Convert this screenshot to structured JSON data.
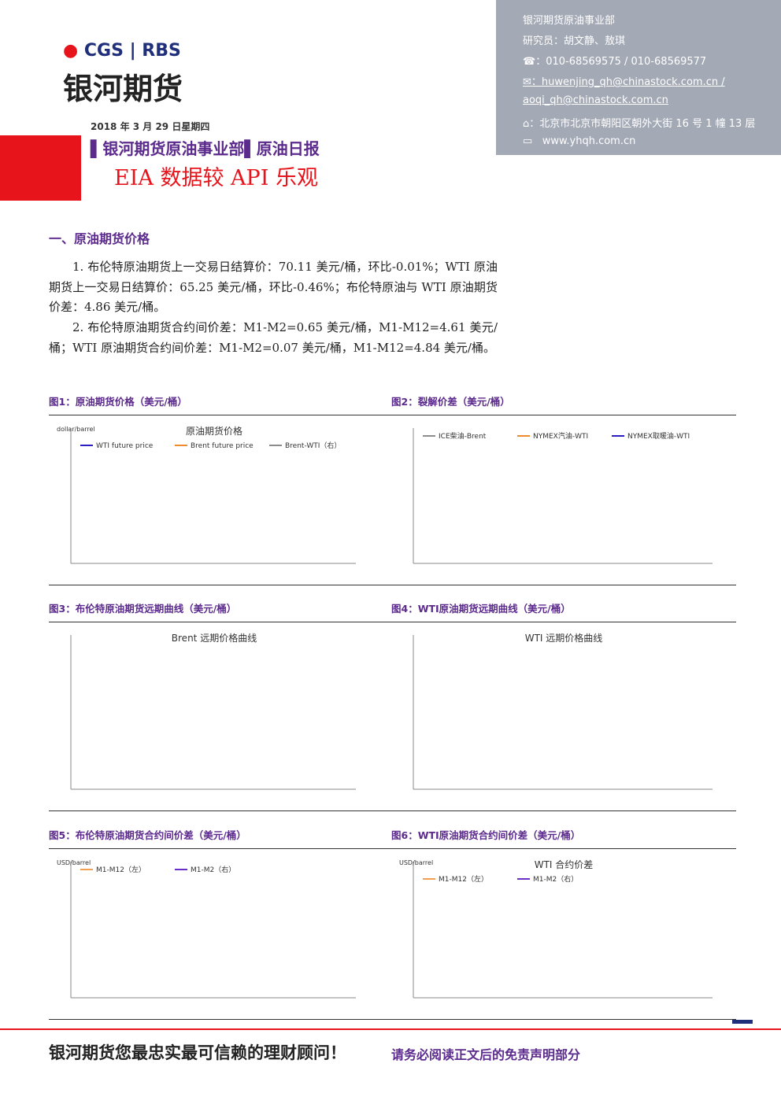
{
  "header": {
    "logo_brand": "CGS",
    "logo_partner": "RBS",
    "company": "银河期货",
    "contact": [
      "银河期货原油事业部",
      "研究员：胡文静、敖琪",
      "：010-68569575 / 010-68569577",
      "：huwenjing_qh@chinastock.com.cn /",
      "aoqi_qh@chinastock.com.cn",
      "：北京市北京市朝阳区朝外大街 16 号 1 幢 13 层",
      "www.yhqh.com.cn"
    ],
    "date": "2018 年 3 月 29 日星期四",
    "department": "▌银河期货原油事业部▌原油日报",
    "report_title": "EIA 数据较 API 乐观"
  },
  "section": {
    "heading": "一、原油期货价格",
    "paragraphs": [
      "1. 布伦特原油期货上一交易日结算价：70.11 美元/桶，环比-0.01%；WTI 原油期货上一交易日结算价：65.25 美元/桶，环比-0.46%；布伦特原油与 WTI 原油期货价差：4.86 美元/桶。",
      "2. 布伦特原油期货合约间价差：M1-M2=0.65 美元/桶，M1-M12=4.61 美元/桶；WTI 原油期货合约间价差：M1-M2=0.07 美元/桶，M1-M12=4.84 美元/桶。"
    ]
  },
  "figures": [
    {
      "caption": "图1：原油期货价格（美元/桶）",
      "title": "原油期货价格",
      "unit": "dollar/barrel",
      "legend": [
        {
          "name": "WTI future price",
          "color": "#2a1fc4"
        },
        {
          "name": "Brent future price",
          "color": "#f08a30"
        },
        {
          "name": "Brent-WTI（右）",
          "color": "#8c8c8c"
        }
      ]
    },
    {
      "caption": "图2：裂解价差（美元/桶）",
      "legend": [
        {
          "name": "ICE柴油-Brent",
          "color": "#8c8c8c"
        },
        {
          "name": "NYMEX汽油-WTI",
          "color": "#f08a30"
        },
        {
          "name": "NYMEX取暖油-WTI",
          "color": "#2a1fc4"
        }
      ]
    },
    {
      "caption": "图3：布伦特原油期货远期曲线（美元/桶）",
      "title": "Brent 远期价格曲线"
    },
    {
      "caption": "图4：WTI原油期货远期曲线（美元/桶）",
      "title": "WTI 远期价格曲线"
    },
    {
      "caption": "图5：布伦特原油期货合约间价差（美元/桶）",
      "unit": "USD/barrel",
      "legend": [
        {
          "name": "M1-M12（左）",
          "color": "#f0a050"
        },
        {
          "name": "M1-M2（右）",
          "color": "#6a2fc8"
        }
      ]
    },
    {
      "caption": "图6：WTI原油期货合约间价差（美元/桶）",
      "title": "WTI 合约价差",
      "unit": "USD/barrel",
      "legend": [
        {
          "name": "M1-M12（左）",
          "color": "#f0a050"
        },
        {
          "name": "M1-M2（右）",
          "color": "#6a2fc8"
        }
      ]
    }
  ],
  "footer": {
    "slogan": "银河期货您最忠实最可信赖的理财顾问！",
    "disclaimer": "请务必阅读正文后的免责声明部分"
  }
}
